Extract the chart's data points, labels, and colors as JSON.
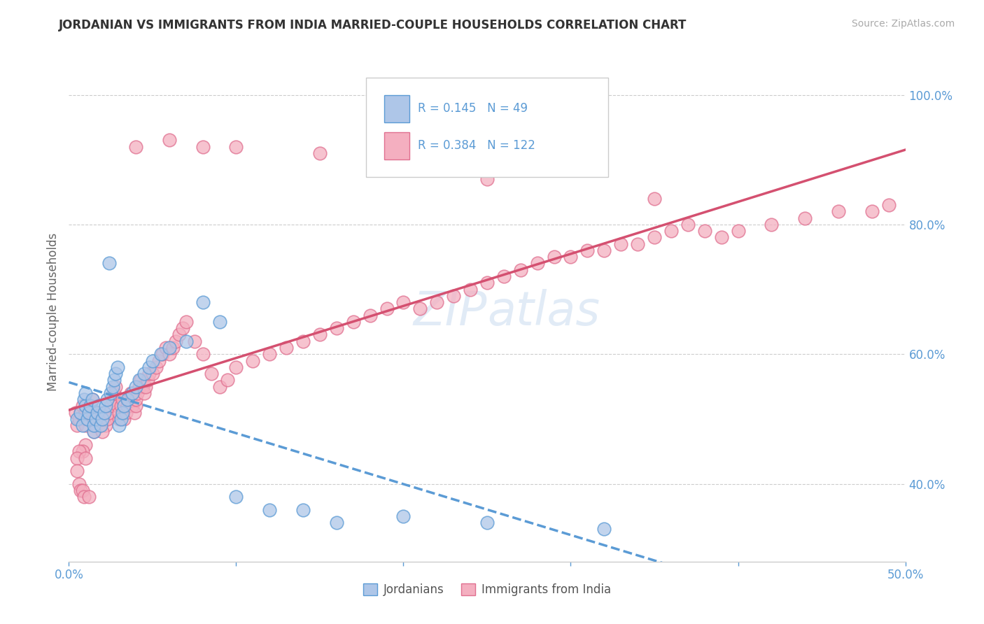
{
  "title": "JORDANIAN VS IMMIGRANTS FROM INDIA MARRIED-COUPLE HOUSEHOLDS CORRELATION CHART",
  "source": "Source: ZipAtlas.com",
  "ylabel": "Married-couple Households",
  "xlim": [
    0.0,
    0.5
  ],
  "ylim": [
    0.28,
    1.05
  ],
  "xticks": [
    0.0,
    0.1,
    0.2,
    0.3,
    0.4,
    0.5
  ],
  "xticklabels": [
    "0.0%",
    "",
    "",
    "",
    "",
    "50.0%"
  ],
  "yticks": [
    0.4,
    0.6,
    0.8,
    1.0
  ],
  "yticklabels": [
    "40.0%",
    "60.0%",
    "80.0%",
    "100.0%"
  ],
  "jordanians_R": 0.145,
  "jordanians_N": 49,
  "india_R": 0.384,
  "india_N": 122,
  "jordanians_color": "#aec6e8",
  "jordanians_edge": "#5b9bd5",
  "india_color": "#f4afc0",
  "india_edge": "#e07090",
  "line_jordan_color": "#5b9bd5",
  "line_india_color": "#d45070",
  "watermark_color": "#c5d8ef",
  "jordanians_x": [
    0.005,
    0.007,
    0.008,
    0.009,
    0.01,
    0.01,
    0.011,
    0.012,
    0.013,
    0.014,
    0.015,
    0.015,
    0.016,
    0.017,
    0.018,
    0.019,
    0.02,
    0.021,
    0.022,
    0.023,
    0.024,
    0.025,
    0.026,
    0.027,
    0.028,
    0.029,
    0.03,
    0.031,
    0.032,
    0.033,
    0.035,
    0.038,
    0.04,
    0.042,
    0.045,
    0.048,
    0.05,
    0.055,
    0.06,
    0.07,
    0.08,
    0.09,
    0.1,
    0.12,
    0.14,
    0.16,
    0.2,
    0.25,
    0.32
  ],
  "jordanians_y": [
    0.5,
    0.51,
    0.49,
    0.53,
    0.52,
    0.54,
    0.5,
    0.51,
    0.52,
    0.53,
    0.48,
    0.49,
    0.5,
    0.51,
    0.52,
    0.49,
    0.5,
    0.51,
    0.52,
    0.53,
    0.74,
    0.54,
    0.55,
    0.56,
    0.57,
    0.58,
    0.49,
    0.5,
    0.51,
    0.52,
    0.53,
    0.54,
    0.55,
    0.56,
    0.57,
    0.58,
    0.59,
    0.6,
    0.61,
    0.62,
    0.68,
    0.65,
    0.38,
    0.36,
    0.36,
    0.34,
    0.35,
    0.34,
    0.33
  ],
  "india_x": [
    0.004,
    0.005,
    0.006,
    0.007,
    0.008,
    0.009,
    0.01,
    0.01,
    0.011,
    0.012,
    0.013,
    0.014,
    0.015,
    0.015,
    0.016,
    0.017,
    0.018,
    0.019,
    0.02,
    0.02,
    0.021,
    0.022,
    0.023,
    0.024,
    0.025,
    0.026,
    0.027,
    0.028,
    0.029,
    0.03,
    0.03,
    0.031,
    0.032,
    0.033,
    0.034,
    0.035,
    0.036,
    0.037,
    0.038,
    0.039,
    0.04,
    0.04,
    0.041,
    0.042,
    0.043,
    0.044,
    0.045,
    0.046,
    0.047,
    0.048,
    0.05,
    0.052,
    0.054,
    0.056,
    0.058,
    0.06,
    0.062,
    0.064,
    0.066,
    0.068,
    0.07,
    0.075,
    0.08,
    0.085,
    0.09,
    0.095,
    0.1,
    0.11,
    0.12,
    0.13,
    0.14,
    0.15,
    0.16,
    0.17,
    0.18,
    0.19,
    0.2,
    0.21,
    0.22,
    0.23,
    0.24,
    0.25,
    0.26,
    0.27,
    0.28,
    0.29,
    0.3,
    0.31,
    0.32,
    0.33,
    0.34,
    0.35,
    0.36,
    0.37,
    0.38,
    0.39,
    0.4,
    0.42,
    0.44,
    0.46,
    0.48,
    0.49,
    0.35,
    0.25,
    0.2,
    0.15,
    0.1,
    0.08,
    0.06,
    0.04,
    0.02,
    0.01,
    0.008,
    0.006,
    0.005,
    0.005,
    0.006,
    0.007,
    0.008,
    0.009,
    0.01,
    0.012
  ],
  "india_y": [
    0.51,
    0.49,
    0.5,
    0.51,
    0.52,
    0.5,
    0.51,
    0.49,
    0.5,
    0.51,
    0.52,
    0.53,
    0.48,
    0.5,
    0.49,
    0.5,
    0.51,
    0.49,
    0.5,
    0.51,
    0.5,
    0.49,
    0.5,
    0.51,
    0.52,
    0.53,
    0.54,
    0.55,
    0.52,
    0.5,
    0.51,
    0.52,
    0.53,
    0.5,
    0.51,
    0.52,
    0.53,
    0.54,
    0.52,
    0.51,
    0.52,
    0.53,
    0.54,
    0.55,
    0.56,
    0.55,
    0.54,
    0.55,
    0.56,
    0.57,
    0.57,
    0.58,
    0.59,
    0.6,
    0.61,
    0.6,
    0.61,
    0.62,
    0.63,
    0.64,
    0.65,
    0.62,
    0.6,
    0.57,
    0.55,
    0.56,
    0.58,
    0.59,
    0.6,
    0.61,
    0.62,
    0.63,
    0.64,
    0.65,
    0.66,
    0.67,
    0.68,
    0.67,
    0.68,
    0.69,
    0.7,
    0.71,
    0.72,
    0.73,
    0.74,
    0.75,
    0.75,
    0.76,
    0.76,
    0.77,
    0.77,
    0.78,
    0.79,
    0.8,
    0.79,
    0.78,
    0.79,
    0.8,
    0.81,
    0.82,
    0.82,
    0.83,
    0.84,
    0.87,
    0.9,
    0.91,
    0.92,
    0.92,
    0.93,
    0.92,
    0.48,
    0.46,
    0.45,
    0.45,
    0.44,
    0.42,
    0.4,
    0.39,
    0.39,
    0.38,
    0.44,
    0.38
  ]
}
